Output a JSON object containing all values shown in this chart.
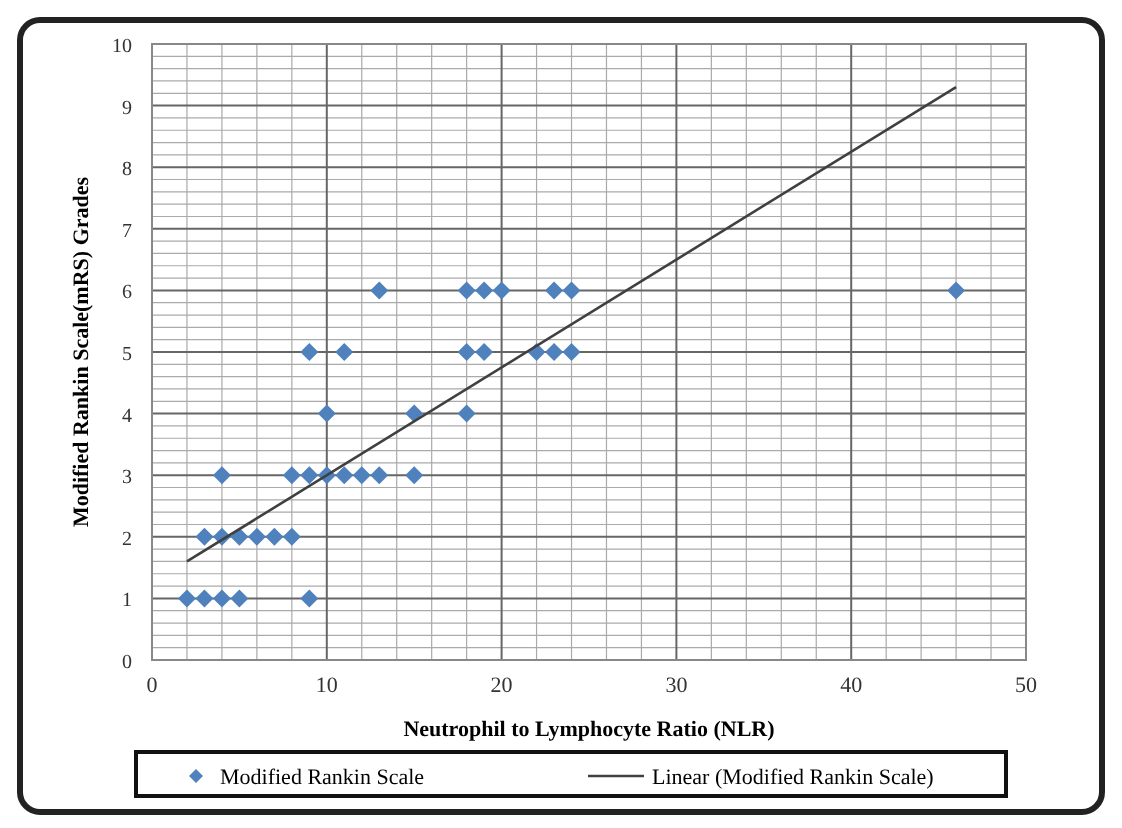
{
  "chart_data": {
    "type": "scatter",
    "xlabel": "Neutrophil to Lymphocyte Ratio (NLR)",
    "ylabel": "Modified Rankin Scale(mRS) Grades",
    "xlim": [
      0,
      50
    ],
    "xticks": [
      0,
      10,
      20,
      30,
      40,
      50
    ],
    "ylim": [
      0,
      10
    ],
    "yticks": [
      0,
      1,
      2,
      3,
      4,
      5,
      6,
      7,
      8,
      9,
      10
    ],
    "grid": true,
    "legend": "bottom",
    "marker": "diamond",
    "series": [
      {
        "name": "Modified Rankin Scale",
        "color": "#4f81bd",
        "x": [
          2,
          3,
          4,
          5,
          9,
          3,
          4,
          5,
          6,
          7,
          8,
          4,
          8,
          9,
          10,
          11,
          12,
          13,
          15,
          10,
          15,
          18,
          9,
          11,
          18,
          19,
          22,
          23,
          24,
          13,
          18,
          19,
          20,
          23,
          24,
          46
        ],
        "values": [
          1,
          1,
          1,
          1,
          1,
          2,
          2,
          2,
          2,
          2,
          2,
          3,
          3,
          3,
          3,
          3,
          3,
          3,
          3,
          4,
          4,
          4,
          5,
          5,
          5,
          5,
          5,
          5,
          5,
          6,
          6,
          6,
          6,
          6,
          6,
          6
        ]
      },
      {
        "name": "Linear (Modified Rankin Scale)",
        "type": "line",
        "color": "#404040",
        "marker": "none",
        "line_style": "solid",
        "x": [
          2,
          46
        ],
        "values": [
          1.6,
          9.3
        ]
      }
    ]
  }
}
